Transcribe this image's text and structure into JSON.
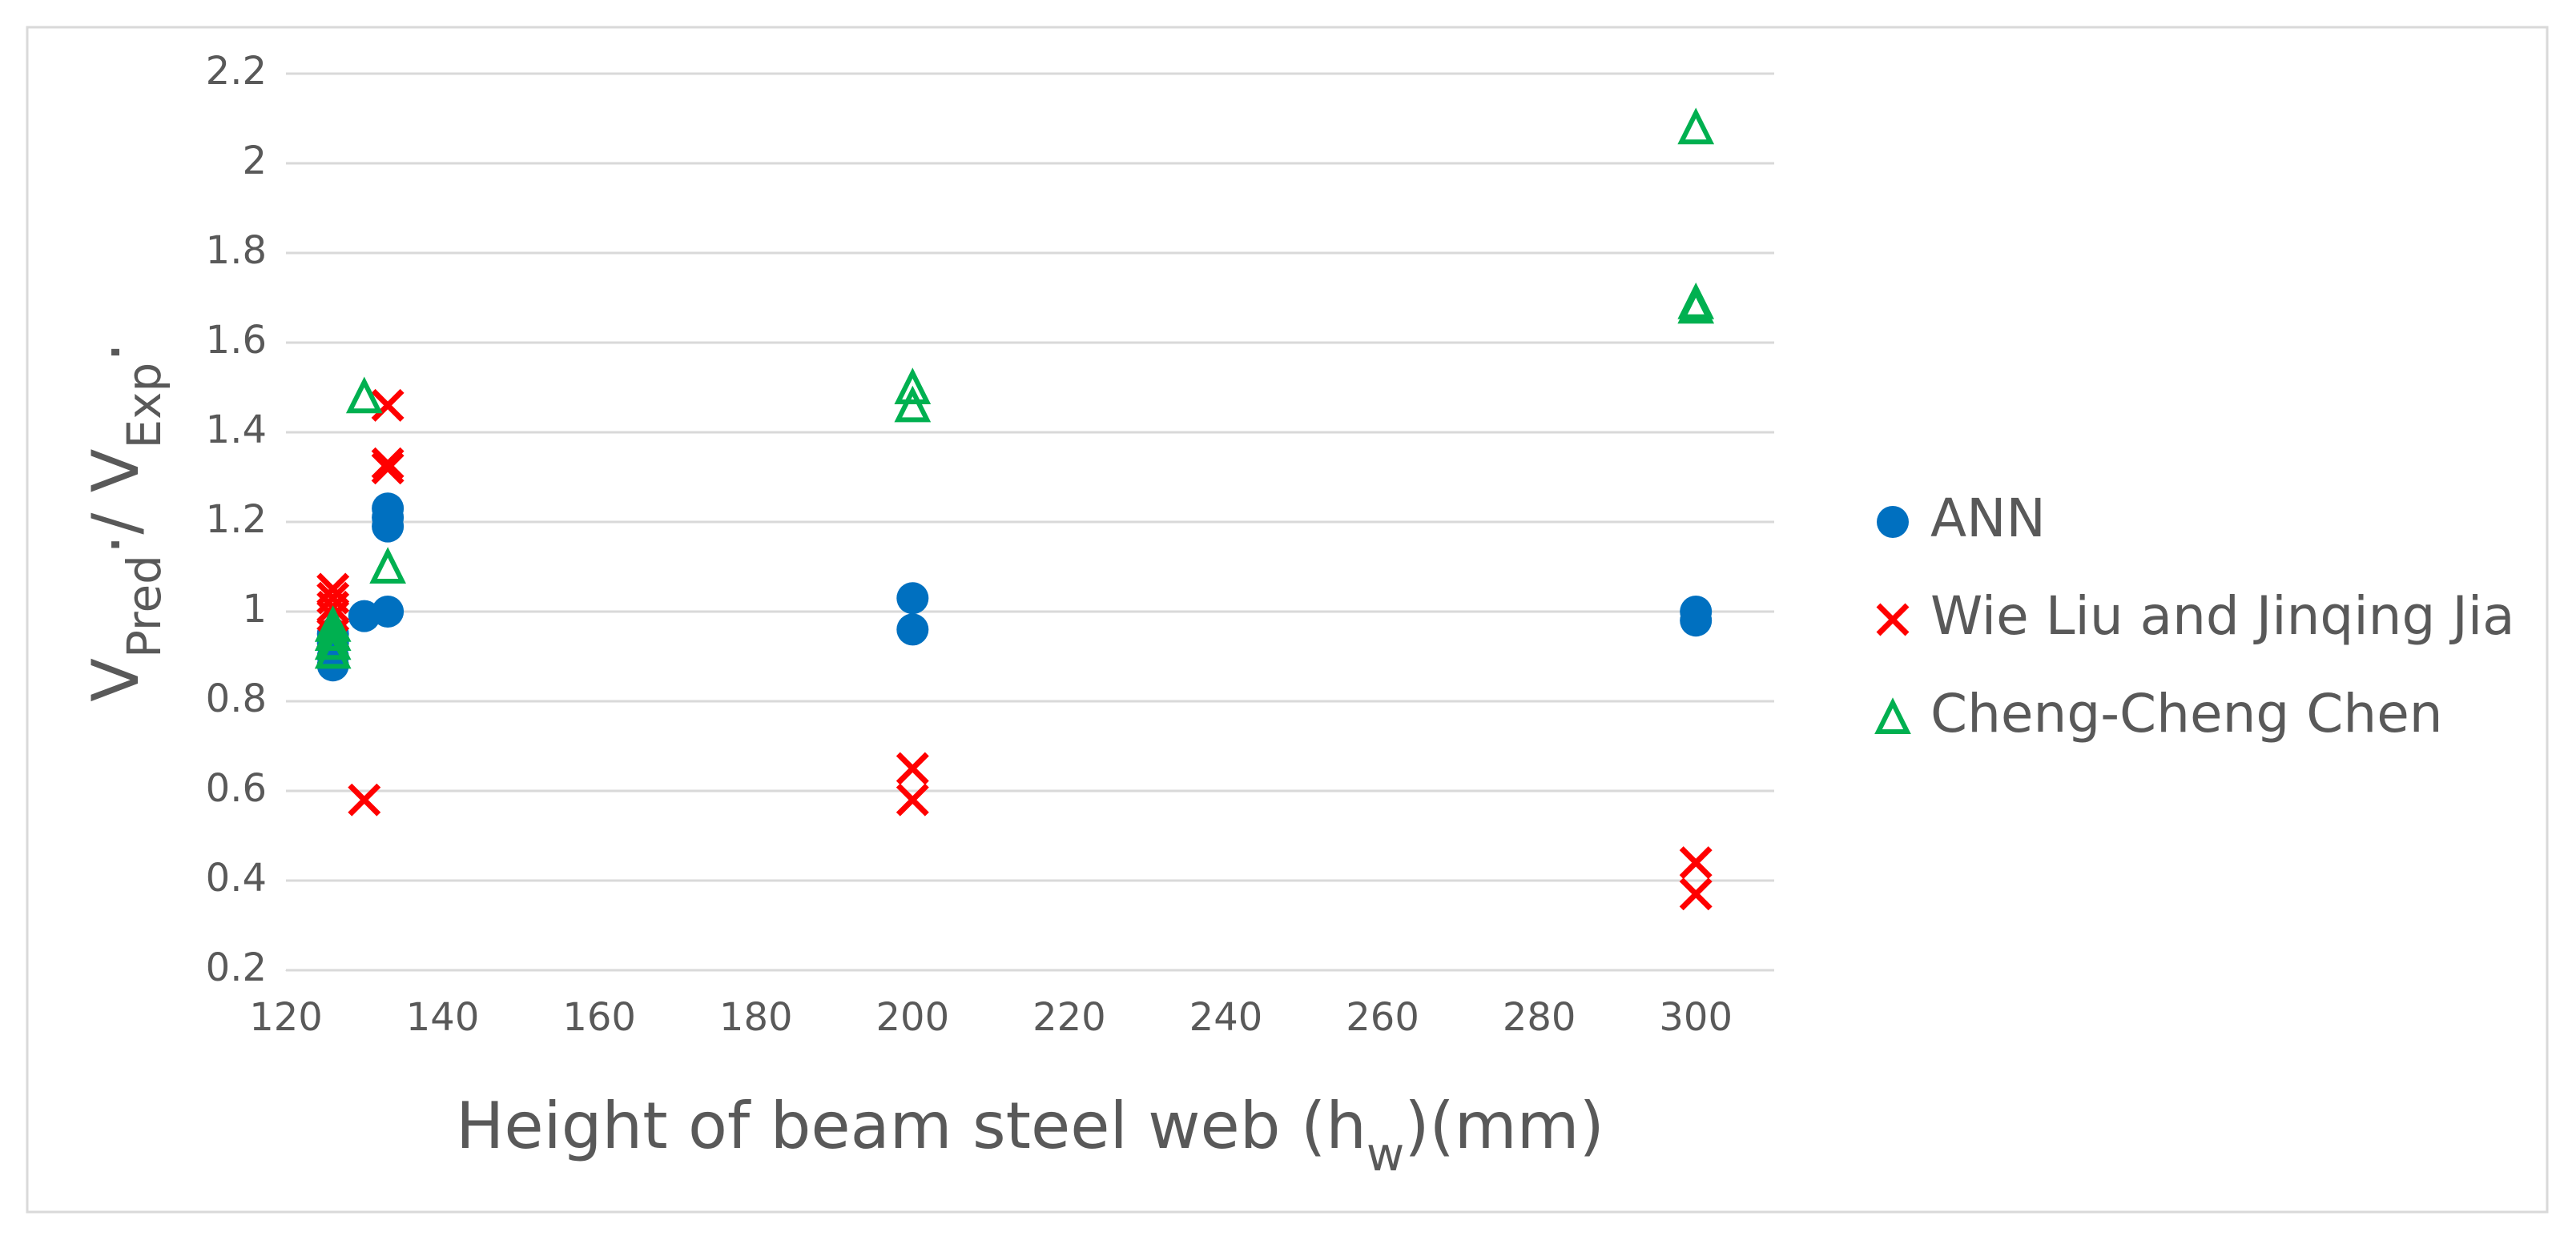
{
  "chart_data": {
    "type": "scatter",
    "x_label_parts": [
      "Height of beam steel web (h",
      "w",
      ")(mm)"
    ],
    "y_label_parts": [
      "V",
      "Pred",
      "·/ V",
      "Exp",
      "·"
    ],
    "xlim": [
      120,
      310
    ],
    "xticks": [
      120,
      140,
      160,
      180,
      200,
      220,
      240,
      260,
      280,
      300
    ],
    "ylim": [
      0.2,
      2.2
    ],
    "yticks": [
      0.2,
      {
        "value": 0.4,
        "label": "0.4"
      },
      {
        "value": 0.6,
        "label": "0.6"
      },
      {
        "value": 0.8,
        "label": "0.8"
      },
      1,
      1.2,
      1.4,
      1.6,
      1.8,
      2,
      2.2
    ],
    "grid": true,
    "legend": "right",
    "series": [
      {
        "name": "ANN",
        "color": "#0070c0",
        "marker": "circle",
        "x": [
          126,
          126,
          126,
          126,
          130,
          133,
          133,
          133,
          133,
          200,
          200,
          300,
          300
        ],
        "values": [
          0.88,
          0.9,
          0.93,
          0.95,
          0.99,
          1.0,
          1.19,
          1.21,
          1.23,
          1.03,
          0.96,
          1.0,
          0.98
        ]
      },
      {
        "name": "Wie Liu and Jinqing Jia",
        "color": "#ff0000",
        "marker": "x",
        "x": [
          126,
          126,
          126,
          126,
          126,
          130,
          133,
          133,
          133,
          200,
          200,
          300,
          300
        ],
        "values": [
          1.05,
          1.03,
          1.01,
          0.99,
          0.95,
          0.58,
          1.46,
          1.33,
          1.32,
          0.65,
          0.58,
          0.44,
          0.37
        ]
      },
      {
        "name": "Cheng-Cheng Chen",
        "color": "#00b050",
        "marker": "triangle",
        "x": [
          126,
          126,
          126,
          126,
          130,
          133,
          200,
          200,
          300,
          300,
          300
        ],
        "values": [
          0.91,
          0.93,
          0.95,
          0.97,
          1.48,
          1.1,
          1.5,
          1.46,
          2.08,
          1.69,
          1.68
        ]
      }
    ]
  }
}
